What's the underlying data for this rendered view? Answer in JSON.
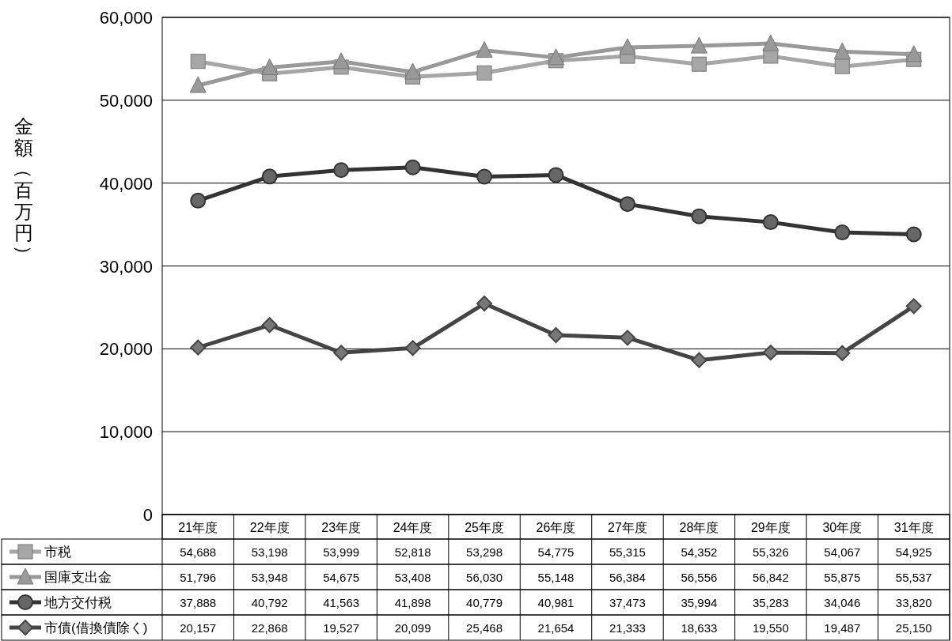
{
  "chart_data": {
    "type": "line",
    "ylabel": "金額（百万円）",
    "categories": [
      "21年度",
      "22年度",
      "23年度",
      "24年度",
      "25年度",
      "26年度",
      "27年度",
      "28年度",
      "29年度",
      "30年度",
      "31年度"
    ],
    "ylim": [
      0,
      60000
    ],
    "yticks": [
      {
        "value": 0,
        "label": "0"
      },
      {
        "value": 10000,
        "label": "10,000"
      },
      {
        "value": 20000,
        "label": "20,000"
      },
      {
        "value": 30000,
        "label": "30,000"
      },
      {
        "value": 40000,
        "label": "40,000"
      },
      {
        "value": 50000,
        "label": "50,000"
      },
      {
        "value": 60000,
        "label": "60,000"
      }
    ],
    "grid": "y",
    "legend": "bottom",
    "series": [
      {
        "name": "市税",
        "color": "#a6a6a6",
        "marker": "square",
        "values": [
          54688,
          53198,
          53999,
          52818,
          53298,
          54775,
          55315,
          54352,
          55326,
          54067,
          54925
        ],
        "value_labels": [
          "54,688",
          "53,198",
          "53,999",
          "52,818",
          "53,298",
          "54,775",
          "55,315",
          "54,352",
          "55,326",
          "54,067",
          "54,925"
        ]
      },
      {
        "name": "国庫支出金",
        "color": "#999999",
        "marker": "triangle",
        "values": [
          51796,
          53948,
          54675,
          53408,
          56030,
          55148,
          56384,
          56556,
          56842,
          55875,
          55537
        ],
        "value_labels": [
          "51,796",
          "53,948",
          "54,675",
          "53,408",
          "56,030",
          "55,148",
          "56,384",
          "56,556",
          "56,842",
          "55,875",
          "55,537"
        ]
      },
      {
        "name": "地方交付税",
        "color": "#333333",
        "marker": "circle",
        "values": [
          37888,
          40792,
          41563,
          41898,
          40779,
          40981,
          37473,
          35994,
          35283,
          34046,
          33820
        ],
        "value_labels": [
          "37,888",
          "40,792",
          "41,563",
          "41,898",
          "40,779",
          "40,981",
          "37,473",
          "35,994",
          "35,283",
          "34,046",
          "33,820"
        ]
      },
      {
        "name": "市債(借換債除く)",
        "color": "#444444",
        "marker": "diamond",
        "values": [
          20157,
          22868,
          19527,
          20099,
          25468,
          21654,
          21333,
          18633,
          19550,
          19487,
          25150
        ],
        "value_labels": [
          "20,157",
          "22,868",
          "19,527",
          "20,099",
          "25,468",
          "21,654",
          "21,333",
          "18,633",
          "19,550",
          "19,487",
          "25,150"
        ]
      }
    ]
  }
}
